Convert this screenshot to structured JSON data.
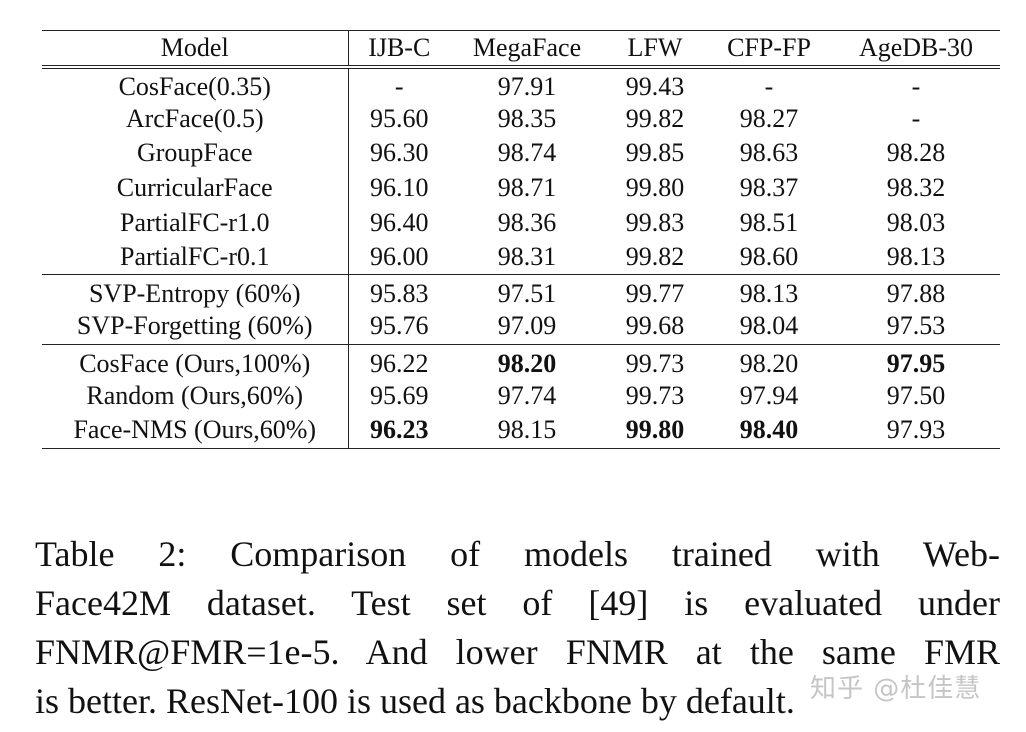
{
  "table": {
    "columns": [
      "Model",
      "IJB-C",
      "MegaFace",
      "LFW",
      "CFP-FP",
      "AgeDB-30"
    ],
    "groups": [
      [
        {
          "model": "CosFace(0.35)",
          "cells": [
            "-",
            "97.91",
            "99.43",
            "-",
            "-"
          ],
          "bold": [
            false,
            false,
            false,
            false,
            false
          ]
        },
        {
          "model": "ArcFace(0.5)",
          "cells": [
            "95.60",
            "98.35",
            "99.82",
            "98.27",
            "-"
          ],
          "bold": [
            false,
            false,
            false,
            false,
            false
          ]
        },
        {
          "model": "GroupFace",
          "cells": [
            "96.30",
            "98.74",
            "99.85",
            "98.63",
            "98.28"
          ],
          "bold": [
            false,
            false,
            false,
            false,
            false
          ]
        },
        {
          "model": "CurricularFace",
          "cells": [
            "96.10",
            "98.71",
            "99.80",
            "98.37",
            "98.32"
          ],
          "bold": [
            false,
            false,
            false,
            false,
            false
          ]
        },
        {
          "model": "PartialFC-r1.0",
          "cells": [
            "96.40",
            "98.36",
            "99.83",
            "98.51",
            "98.03"
          ],
          "bold": [
            false,
            false,
            false,
            false,
            false
          ]
        },
        {
          "model": "PartialFC-r0.1",
          "cells": [
            "96.00",
            "98.31",
            "99.82",
            "98.60",
            "98.13"
          ],
          "bold": [
            false,
            false,
            false,
            false,
            false
          ]
        }
      ],
      [
        {
          "model": "SVP-Entropy (60%)",
          "cells": [
            "95.83",
            "97.51",
            "99.77",
            "98.13",
            "97.88"
          ],
          "bold": [
            false,
            false,
            false,
            false,
            false
          ]
        },
        {
          "model": "SVP-Forgetting (60%)",
          "cells": [
            "95.76",
            "97.09",
            "99.68",
            "98.04",
            "97.53"
          ],
          "bold": [
            false,
            false,
            false,
            false,
            false
          ]
        }
      ],
      [
        {
          "model": "CosFace (Ours,100%)",
          "cells": [
            "96.22",
            "98.20",
            "99.73",
            "98.20",
            "97.95"
          ],
          "bold": [
            false,
            true,
            false,
            false,
            true
          ]
        },
        {
          "model": "Random (Ours,60%)",
          "cells": [
            "95.69",
            "97.74",
            "99.73",
            "97.94",
            "97.50"
          ],
          "bold": [
            false,
            false,
            false,
            false,
            false
          ]
        },
        {
          "model": "Face-NMS (Ours,60%)",
          "cells": [
            "96.23",
            "98.15",
            "99.80",
            "98.40",
            "97.93"
          ],
          "bold": [
            true,
            false,
            true,
            true,
            false
          ]
        }
      ]
    ]
  },
  "caption": {
    "lines": [
      "Table 2:  Comparison of models trained with Web-",
      "Face42M dataset.  Test set of [49] is evaluated under",
      "FNMR@FMR=1e-5. And lower FNMR at the same FMR",
      "is better. ResNet-100 is used as backbone by default."
    ]
  },
  "watermark": "知乎 @杜佳慧"
}
